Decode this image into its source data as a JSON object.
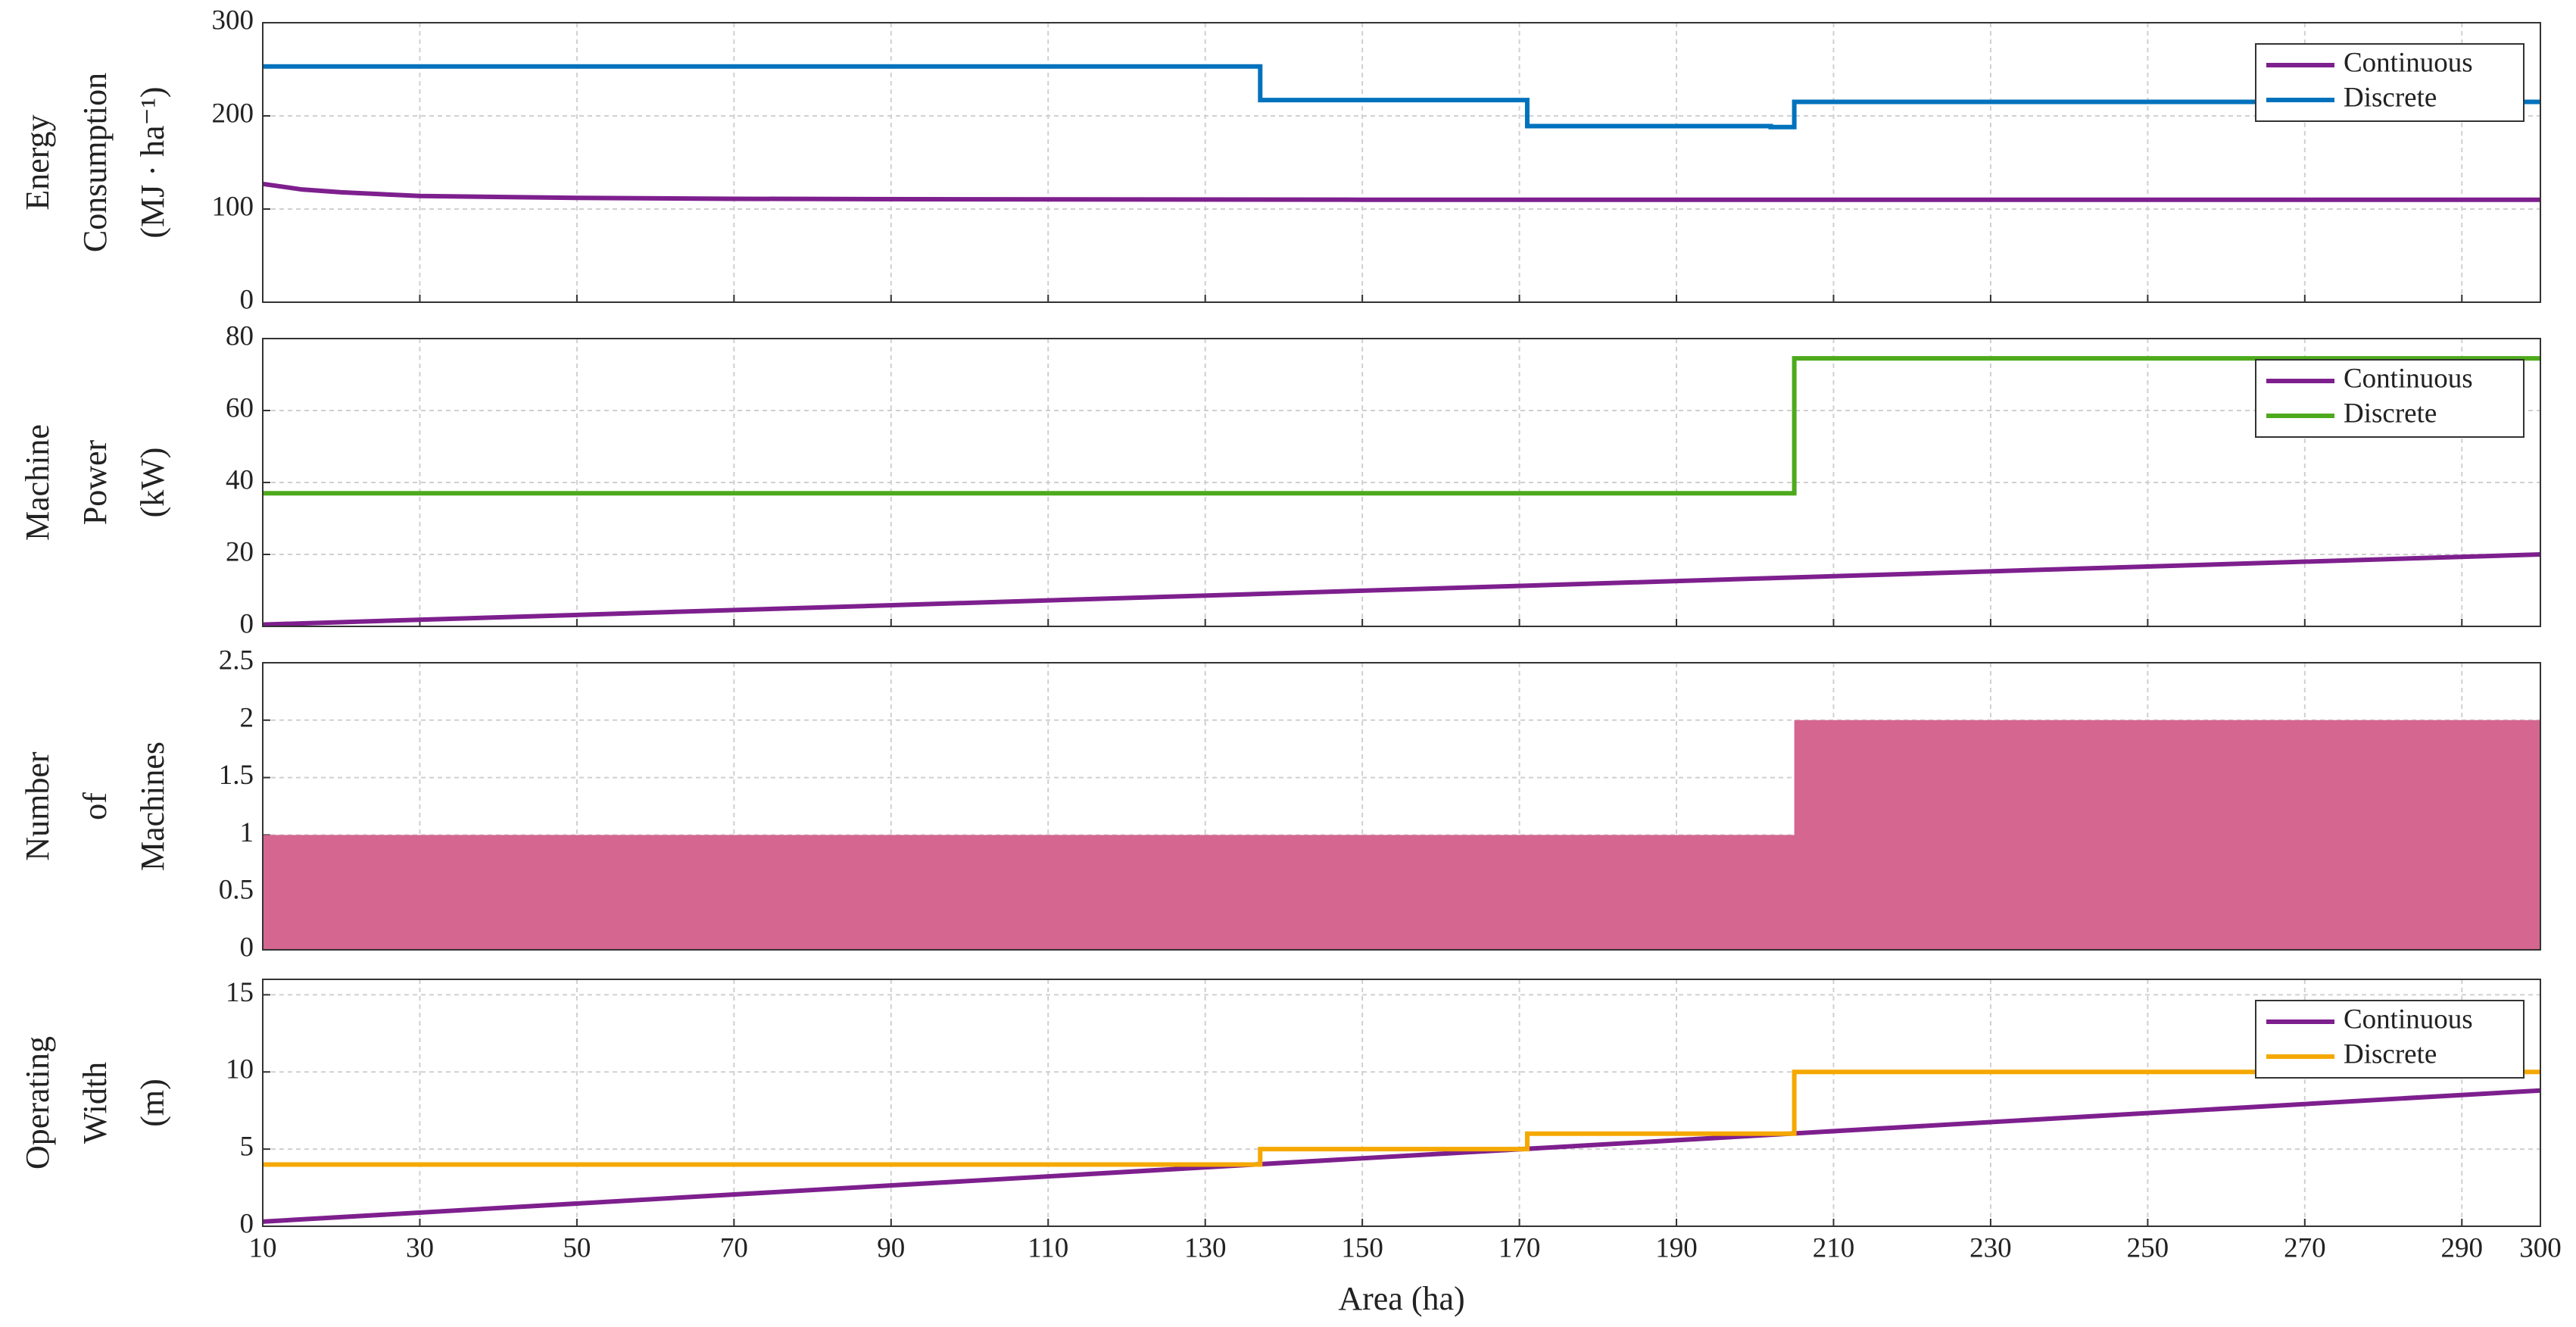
{
  "chart_data": [
    {
      "type": "line",
      "ylabel": [
        "Energy",
        "Consumption",
        "(MJ · ha⁻¹)"
      ],
      "xlim": [
        10,
        300
      ],
      "xticks": [
        10,
        30,
        50,
        70,
        90,
        110,
        130,
        150,
        170,
        190,
        210,
        230,
        250,
        270,
        290,
        300
      ],
      "ylim": [
        0,
        300
      ],
      "yticks": [
        0,
        100,
        200,
        300
      ],
      "grid": true,
      "legend": "upper right",
      "series": [
        {
          "name": "Continuous",
          "color": "#7e1f8e",
          "x": [
            10,
            15,
            20,
            30,
            50,
            70,
            100,
            150,
            200,
            250,
            300
          ],
          "values": [
            127,
            121,
            118,
            114,
            112,
            111,
            110.5,
            110,
            110,
            110,
            110
          ]
        },
        {
          "name": "Discrete",
          "color": "#0072bd",
          "x": [
            10,
            137,
            137,
            171,
            171,
            202,
            202,
            205,
            205,
            300
          ],
          "values": [
            253,
            253,
            217,
            217,
            189,
            189,
            188,
            188,
            215,
            215
          ]
        }
      ]
    },
    {
      "type": "line",
      "ylabel": [
        "Machine",
        "Power",
        "(kW)"
      ],
      "xlim": [
        10,
        300
      ],
      "xticks": [
        10,
        30,
        50,
        70,
        90,
        110,
        130,
        150,
        170,
        190,
        210,
        230,
        250,
        270,
        290,
        300
      ],
      "ylim": [
        0,
        80
      ],
      "yticks": [
        0,
        20,
        40,
        60,
        80
      ],
      "grid": true,
      "legend": "upper right",
      "series": [
        {
          "name": "Continuous",
          "color": "#7e1f8e",
          "x": [
            10,
            300
          ],
          "values": [
            0.5,
            20
          ]
        },
        {
          "name": "Discrete",
          "color": "#4daa1c",
          "x": [
            10,
            205,
            205,
            300
          ],
          "values": [
            37,
            37,
            74.5,
            74.5
          ]
        }
      ]
    },
    {
      "type": "area",
      "ylabel": [
        "Number",
        "of",
        "Machines"
      ],
      "xlim": [
        10,
        300
      ],
      "xticks": [
        10,
        30,
        50,
        70,
        90,
        110,
        130,
        150,
        170,
        190,
        210,
        230,
        250,
        270,
        290,
        300
      ],
      "ylim": [
        0,
        2.5
      ],
      "yticks": [
        0,
        0.5,
        1,
        1.5,
        2,
        2.5
      ],
      "grid": true,
      "series": [
        {
          "color": "#d4668f",
          "x": [
            10,
            205,
            205,
            300
          ],
          "values": [
            1,
            1,
            2,
            2
          ]
        }
      ]
    },
    {
      "type": "line",
      "ylabel": [
        "Operating",
        "Width",
        "(m)"
      ],
      "xlabel": "Area (ha)",
      "xlim": [
        10,
        300
      ],
      "xticks": [
        10,
        30,
        50,
        70,
        90,
        110,
        130,
        150,
        170,
        190,
        210,
        230,
        250,
        270,
        290,
        300
      ],
      "ylim": [
        0,
        16
      ],
      "yticks": [
        0,
        5,
        10,
        15
      ],
      "grid": true,
      "legend": "upper right",
      "series": [
        {
          "name": "Continuous",
          "color": "#7e1f8e",
          "x": [
            10,
            300
          ],
          "values": [
            0.3,
            8.8
          ]
        },
        {
          "name": "Discrete",
          "color": "#f5a800",
          "x": [
            10,
            137,
            137,
            171,
            171,
            205,
            205,
            300
          ],
          "values": [
            4,
            4,
            5,
            5,
            6,
            6,
            10,
            10
          ]
        }
      ]
    }
  ]
}
